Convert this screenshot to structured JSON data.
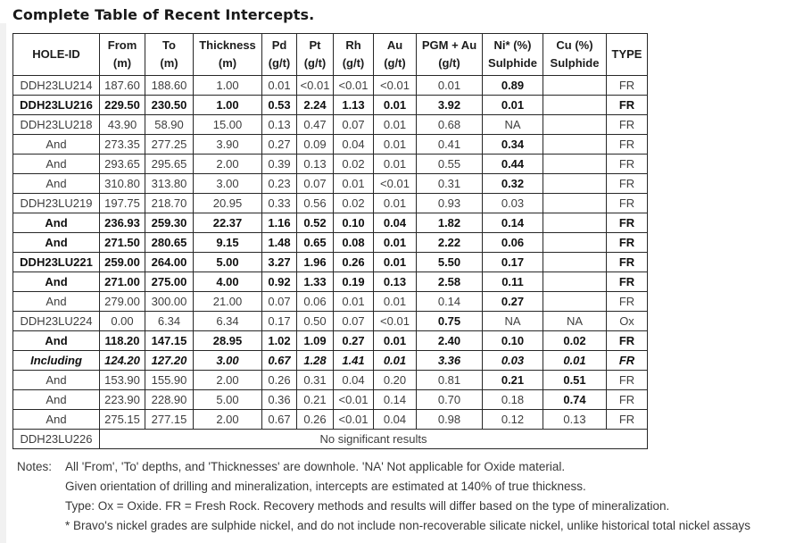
{
  "title": "Complete Table of Recent Intercepts.",
  "table": {
    "columns": [
      {
        "line1": "HOLE-ID",
        "line2": ""
      },
      {
        "line1": "From",
        "line2": "(m)"
      },
      {
        "line1": "To",
        "line2": "(m)"
      },
      {
        "line1": "Thickness",
        "line2": "(m)"
      },
      {
        "line1": "Pd",
        "line2": "(g/t)"
      },
      {
        "line1": "Pt",
        "line2": "(g/t)"
      },
      {
        "line1": "Rh",
        "line2": "(g/t)"
      },
      {
        "line1": "Au",
        "line2": "(g/t)"
      },
      {
        "line1": "PGM + Au",
        "line2": "(g/t)"
      },
      {
        "line1": "Ni* (%)",
        "line2": "Sulphide"
      },
      {
        "line1": "Cu (%)",
        "line2": "Sulphide"
      },
      {
        "line1": "TYPE",
        "line2": ""
      }
    ],
    "rows": [
      {
        "cells": [
          "DDH23LU214",
          "187.60",
          "188.60",
          "1.00",
          "0.01",
          "<0.01",
          "<0.01",
          "<0.01",
          "0.01",
          "0.89",
          "",
          "FR"
        ],
        "bold": false,
        "italic": false,
        "bold_cells": [
          9
        ]
      },
      {
        "cells": [
          "DDH23LU216",
          "229.50",
          "230.50",
          "1.00",
          "0.53",
          "2.24",
          "1.13",
          "0.01",
          "3.92",
          "0.01",
          "",
          "FR"
        ],
        "bold": true,
        "italic": false,
        "bold_cells": []
      },
      {
        "cells": [
          "DDH23LU218",
          "43.90",
          "58.90",
          "15.00",
          "0.13",
          "0.47",
          "0.07",
          "0.01",
          "0.68",
          "NA",
          "",
          "FR"
        ],
        "bold": false,
        "italic": false,
        "bold_cells": []
      },
      {
        "cells": [
          "And",
          "273.35",
          "277.25",
          "3.90",
          "0.27",
          "0.09",
          "0.04",
          "0.01",
          "0.41",
          "0.34",
          "",
          "FR"
        ],
        "bold": false,
        "italic": false,
        "bold_cells": [
          9
        ]
      },
      {
        "cells": [
          "And",
          "293.65",
          "295.65",
          "2.00",
          "0.39",
          "0.13",
          "0.02",
          "0.01",
          "0.55",
          "0.44",
          "",
          "FR"
        ],
        "bold": false,
        "italic": false,
        "bold_cells": [
          9
        ]
      },
      {
        "cells": [
          "And",
          "310.80",
          "313.80",
          "3.00",
          "0.23",
          "0.07",
          "0.01",
          "<0.01",
          "0.31",
          "0.32",
          "",
          "FR"
        ],
        "bold": false,
        "italic": false,
        "bold_cells": [
          9
        ]
      },
      {
        "cells": [
          "DDH23LU219",
          "197.75",
          "218.70",
          "20.95",
          "0.33",
          "0.56",
          "0.02",
          "0.01",
          "0.93",
          "0.03",
          "",
          "FR"
        ],
        "bold": false,
        "italic": false,
        "bold_cells": []
      },
      {
        "cells": [
          "And",
          "236.93",
          "259.30",
          "22.37",
          "1.16",
          "0.52",
          "0.10",
          "0.04",
          "1.82",
          "0.14",
          "",
          "FR"
        ],
        "bold": true,
        "italic": false,
        "bold_cells": []
      },
      {
        "cells": [
          "And",
          "271.50",
          "280.65",
          "9.15",
          "1.48",
          "0.65",
          "0.08",
          "0.01",
          "2.22",
          "0.06",
          "",
          "FR"
        ],
        "bold": true,
        "italic": false,
        "bold_cells": []
      },
      {
        "cells": [
          "DDH23LU221",
          "259.00",
          "264.00",
          "5.00",
          "3.27",
          "1.96",
          "0.26",
          "0.01",
          "5.50",
          "0.17",
          "",
          "FR"
        ],
        "bold": true,
        "italic": false,
        "bold_cells": []
      },
      {
        "cells": [
          "And",
          "271.00",
          "275.00",
          "4.00",
          "0.92",
          "1.33",
          "0.19",
          "0.13",
          "2.58",
          "0.11",
          "",
          "FR"
        ],
        "bold": true,
        "italic": false,
        "bold_cells": []
      },
      {
        "cells": [
          "And",
          "279.00",
          "300.00",
          "21.00",
          "0.07",
          "0.06",
          "0.01",
          "0.01",
          "0.14",
          "0.27",
          "",
          "FR"
        ],
        "bold": false,
        "italic": false,
        "bold_cells": [
          9
        ]
      },
      {
        "cells": [
          "DDH23LU224",
          "0.00",
          "6.34",
          "6.34",
          "0.17",
          "0.50",
          "0.07",
          "<0.01",
          "0.75",
          "NA",
          "NA",
          "Ox"
        ],
        "bold": false,
        "italic": false,
        "bold_cells": [
          8
        ]
      },
      {
        "cells": [
          "And",
          "118.20",
          "147.15",
          "28.95",
          "1.02",
          "1.09",
          "0.27",
          "0.01",
          "2.40",
          "0.10",
          "0.02",
          "FR"
        ],
        "bold": true,
        "italic": false,
        "bold_cells": []
      },
      {
        "cells": [
          "Including",
          "124.20",
          "127.20",
          "3.00",
          "0.67",
          "1.28",
          "1.41",
          "0.01",
          "3.36",
          "0.03",
          "0.01",
          "FR"
        ],
        "bold": true,
        "italic": true,
        "bold_cells": []
      },
      {
        "cells": [
          "And",
          "153.90",
          "155.90",
          "2.00",
          "0.26",
          "0.31",
          "0.04",
          "0.20",
          "0.81",
          "0.21",
          "0.51",
          "FR"
        ],
        "bold": false,
        "italic": false,
        "bold_cells": [
          9,
          10
        ]
      },
      {
        "cells": [
          "And",
          "223.90",
          "228.90",
          "5.00",
          "0.36",
          "0.21",
          "<0.01",
          "0.14",
          "0.70",
          "0.18",
          "0.74",
          "FR"
        ],
        "bold": false,
        "italic": false,
        "bold_cells": [
          10
        ]
      },
      {
        "cells": [
          "And",
          "275.15",
          "277.15",
          "2.00",
          "0.67",
          "0.26",
          "<0.01",
          "0.04",
          "0.98",
          "0.12",
          "0.13",
          "FR"
        ],
        "bold": false,
        "italic": false,
        "bold_cells": []
      }
    ],
    "footer_row": {
      "hole_id": "DDH23LU226",
      "message": "No significant results"
    }
  },
  "notes": {
    "label": "Notes:",
    "lines": [
      "All 'From', 'To' depths, and 'Thicknesses' are downhole. 'NA' Not applicable for Oxide material.",
      "Given orientation of drilling and mineralization, intercepts are estimated at 140% of true thickness.",
      "Type: Ox = Oxide. FR = Fresh Rock. Recovery methods and results will differ based on the type of mineralization.",
      "* Bravo's nickel grades are sulphide nickel, and do not include non-recoverable silicate nickel, unlike historical total nickel assays"
    ]
  },
  "colors": {
    "text": "#3d3d3d",
    "bold_text": "#101010",
    "border": "#272727",
    "page_edge": "#f1f1f1"
  }
}
